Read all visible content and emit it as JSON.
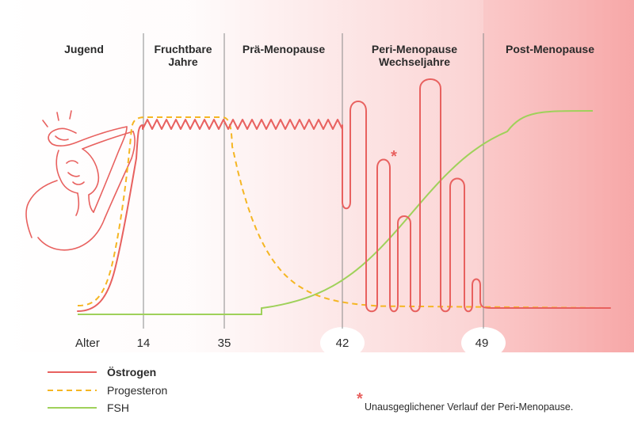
{
  "colors": {
    "estrogen": "#e8615f",
    "progesterone": "#f5b623",
    "fsh": "#9fd15a",
    "background_pink": "#f8b7b7",
    "text": "#2b2b2b",
    "divider": "#8a8a8a"
  },
  "phases": [
    {
      "id": "jugend",
      "lines": [
        "Jugend"
      ]
    },
    {
      "id": "fruchtbare",
      "lines": [
        "Fruchtbare",
        "Jahre"
      ]
    },
    {
      "id": "prae",
      "lines": [
        "Prä-Menopause"
      ]
    },
    {
      "id": "peri",
      "lines": [
        "Peri-Menopause",
        "Wechseljahre"
      ]
    },
    {
      "id": "post",
      "lines": [
        "Post-Menopause"
      ]
    }
  ],
  "axis": {
    "label": "Alter",
    "ticks": [
      "14",
      "35",
      "42",
      "49"
    ]
  },
  "legend": [
    {
      "label": "Östrogen",
      "style": "solid",
      "color_key": "estrogen",
      "bold": true
    },
    {
      "label": "Progesteron",
      "style": "dashed",
      "color_key": "progesterone",
      "bold": false
    },
    {
      "label": "FSH",
      "style": "solid",
      "color_key": "fsh",
      "bold": false
    }
  ],
  "note": {
    "symbol": "*",
    "text": "Unausgeglichener Verlauf der Peri-Menopause."
  },
  "illustration": {
    "icon": "woman-hot-flash-icon"
  }
}
